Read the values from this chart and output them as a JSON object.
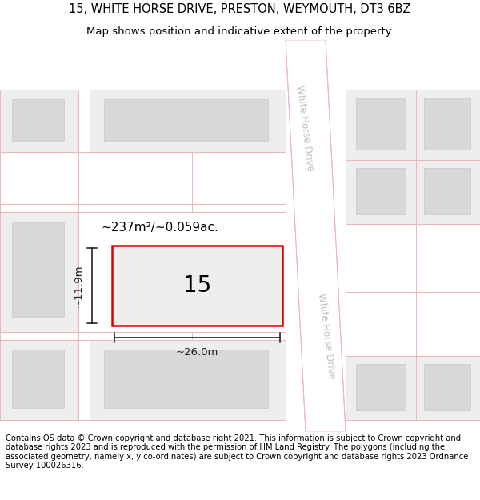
{
  "title_line1": "15, WHITE HORSE DRIVE, PRESTON, WEYMOUTH, DT3 6BZ",
  "title_line2": "Map shows position and indicative extent of the property.",
  "footer_text": "Contains OS data © Crown copyright and database right 2021. This information is subject to Crown copyright and database rights 2023 and is reproduced with the permission of HM Land Registry. The polygons (including the associated geometry, namely x, y co-ordinates) are subject to Crown copyright and database rights 2023 Ordnance Survey 100026316.",
  "map_bg": "#f2f2f2",
  "road_fill": "#ffffff",
  "road_stroke": "#e8b8b8",
  "plot_fill": "#eeeeee",
  "plot_edge": "#dd0000",
  "plot_lw": 1.8,
  "dim_color": "#222222",
  "area_text": "~237m²/~0.059ac.",
  "width_text": "~26.0m",
  "height_text": "~11.9m",
  "street_text": "White Horse Drive",
  "street_color": "#c0c0c0",
  "title_fontsize": 10.5,
  "subtitle_fontsize": 9.5,
  "footer_fontsize": 7.2,
  "bg_color": "#ffffff"
}
